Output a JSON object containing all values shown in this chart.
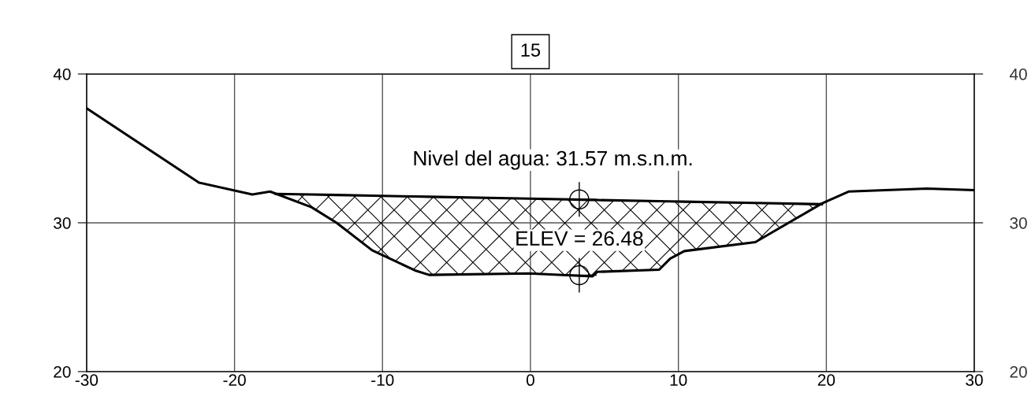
{
  "chart_data": {
    "type": "line",
    "title": "15",
    "series": [
      {
        "color": "#000000",
        "x": [
          -30,
          -22.4,
          -18.8,
          -17.6,
          -14.8,
          -13.1,
          -10.7,
          -7.8,
          -6.85,
          -0.1,
          4.2,
          4.5,
          8.7,
          9.45,
          10.4,
          15.2,
          19.7,
          21.5,
          26.8,
          30
        ],
        "values": [
          37.7,
          32.7,
          31.9,
          32.1,
          31.05,
          30.0,
          28.15,
          26.8,
          26.5,
          26.6,
          26.4,
          26.7,
          26.85,
          27.6,
          28.1,
          28.7,
          31.3,
          32.1,
          32.3,
          32.2
        ]
      },
      {
        "type": "line",
        "color": "#000000",
        "x": [
          -17.2,
          -14.8,
          -13.1,
          -10.7,
          -7.8,
          -6.85,
          -0.1,
          4.2,
          4.5,
          8.7,
          9.45,
          10.4,
          15.2,
          19.7
        ],
        "values": [
          31.94,
          31.9,
          31.87,
          31.82,
          31.77,
          31.75,
          31.62,
          31.54,
          31.53,
          31.45,
          31.44,
          31.42,
          31.33,
          31.25
        ],
        "lower": [
          31.94,
          31.05,
          30.0,
          28.15,
          26.8,
          26.5,
          26.6,
          26.4,
          26.7,
          26.85,
          27.6,
          28.1,
          28.7,
          31.25
        ],
        "upper": [
          31.94,
          31.9,
          31.87,
          31.82,
          31.77,
          31.75,
          31.62,
          31.54,
          31.53,
          31.45,
          31.44,
          31.42,
          31.33,
          31.25
        ]
      },
      {
        "type": "scatter",
        "color": "#000000",
        "marker": "circle",
        "x": [
          3.3,
          3.3
        ],
        "values": [
          31.57,
          26.48
        ]
      }
    ],
    "annotations": [
      {
        "text": "Nivel del agua: 31.57 m.s.n.m.",
        "x": 3.3,
        "y": 31.57
      },
      {
        "text": "ELEV = 26.48",
        "x": 3.3,
        "y": 26.48
      }
    ],
    "xlim": [
      -30,
      30
    ],
    "xticks": [
      -30,
      -20,
      -10,
      0,
      10,
      20,
      30
    ],
    "ylim": [
      20,
      40
    ],
    "yticks": [
      20,
      30,
      40
    ],
    "y2lim": [
      20,
      40
    ],
    "y2ticks": [
      20,
      30,
      40
    ],
    "grid": true
  }
}
